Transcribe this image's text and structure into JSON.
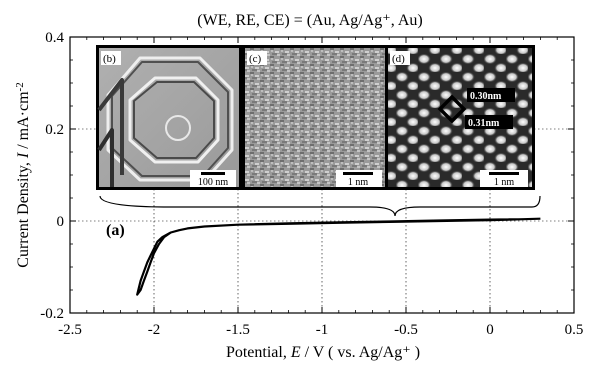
{
  "chart_data": {
    "type": "line",
    "title": "(WE, RE, CE) = (Au, Ag/Ag⁺, Au)",
    "xlabel_prefix": "Potential, ",
    "xlabel_var": "E",
    "xlabel_suffix": " / V ( vs. Ag/Ag⁺ )",
    "ylabel_prefix": "Current Density, ",
    "ylabel_var": "I",
    "ylabel_unit": " / mA·cm",
    "ylabel_exp": "-2",
    "panel_label": "(a)",
    "xlim": [
      -2.5,
      0.5
    ],
    "ylim": [
      -0.2,
      0.4
    ],
    "x_ticks": [
      -2.5,
      -2,
      -1.5,
      -1,
      -0.5,
      0,
      0.5
    ],
    "x_tick_labels": [
      "-2.5",
      "-2",
      "-1.5",
      "-1",
      "-0.5",
      "0",
      "0.5"
    ],
    "y_ticks": [
      -0.2,
      0,
      0.2,
      0.4
    ],
    "y_tick_labels": [
      "-0.2",
      "0",
      "0.2",
      "0.4"
    ],
    "grid": true,
    "series": [
      {
        "x": [
          0.3,
          0.2,
          0.0,
          -0.3,
          -0.6,
          -0.9,
          -1.2,
          -1.5,
          -1.7,
          -1.8,
          -1.85,
          -1.9,
          -1.95,
          -1.98,
          -2.0,
          -2.02,
          -2.04,
          -2.06,
          -2.08,
          -2.09,
          -2.1,
          -2.1,
          -2.08,
          -2.06,
          -2.04,
          -2.02,
          -2.0,
          -1.97,
          -1.94,
          -1.9,
          -1.85,
          -1.8,
          -1.7,
          -1.5,
          -1.2,
          -0.9,
          -0.6,
          -0.3,
          0.0,
          0.2,
          0.3
        ],
        "y": [
          0.005,
          0.004,
          0.002,
          0.0,
          -0.002,
          -0.004,
          -0.006,
          -0.008,
          -0.012,
          -0.016,
          -0.02,
          -0.025,
          -0.035,
          -0.045,
          -0.06,
          -0.075,
          -0.09,
          -0.11,
          -0.13,
          -0.145,
          -0.16,
          -0.16,
          -0.15,
          -0.13,
          -0.11,
          -0.09,
          -0.07,
          -0.05,
          -0.035,
          -0.025,
          -0.02,
          -0.016,
          -0.012,
          -0.008,
          -0.005,
          -0.003,
          -0.001,
          0.001,
          0.003,
          0.004,
          0.005
        ]
      }
    ]
  },
  "insets": [
    {
      "letter": "(b)",
      "scale": "100 nm"
    },
    {
      "letter": "(c)",
      "scale": "1 nm"
    },
    {
      "letter": "(d)",
      "scale": "1 nm",
      "annotations": [
        "0.30nm",
        "0.31nm"
      ]
    }
  ]
}
